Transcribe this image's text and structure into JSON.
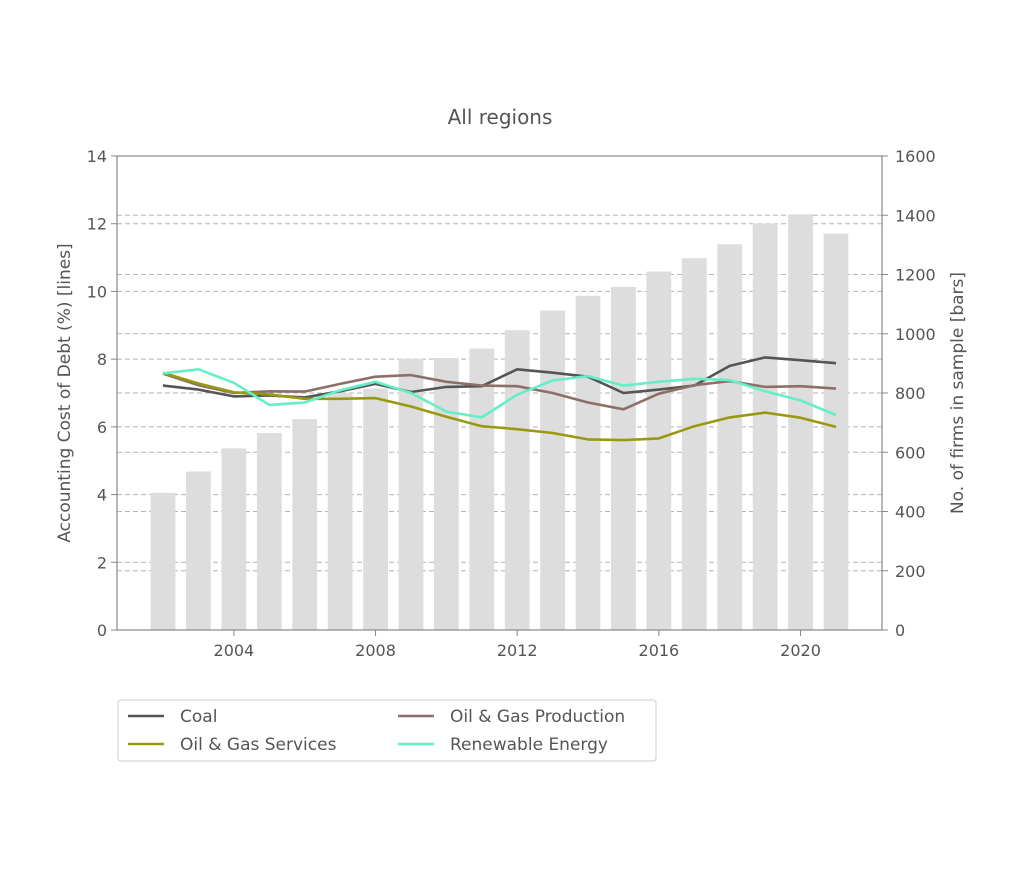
{
  "chart_data": {
    "type": "bar+line",
    "title": "All regions",
    "xlabel": "",
    "ylabel_left": "Accounting Cost of Debt (%) [lines]",
    "ylabel_right": "No. of firms in sample [bars]",
    "x": [
      2002,
      2003,
      2004,
      2005,
      2006,
      2007,
      2008,
      2009,
      2010,
      2011,
      2012,
      2013,
      2014,
      2015,
      2016,
      2017,
      2018,
      2019,
      2020,
      2021
    ],
    "xlim": [
      2000.7,
      2022.3
    ],
    "xticks": [
      "2004",
      "2008",
      "2012",
      "2016",
      "2020"
    ],
    "ylim_left": [
      0,
      14
    ],
    "yticks_left": [
      "0",
      "2",
      "4",
      "6",
      "8",
      "10",
      "12",
      "14"
    ],
    "ylim_right": [
      0,
      1600
    ],
    "yticks_right": [
      "0",
      "200",
      "400",
      "600",
      "800",
      "1000",
      "1200",
      "1400",
      "1600"
    ],
    "grid": "horizontal dashed",
    "legend_position": "below",
    "bars": {
      "color": "#dddddd",
      "values": [
        463,
        535,
        613,
        665,
        712,
        800,
        815,
        915,
        918,
        950,
        1012,
        1078,
        1128,
        1158,
        1210,
        1255,
        1302,
        1372,
        1403,
        1338
      ]
    },
    "series": [
      {
        "name": "Coal",
        "color": "#555555",
        "values": [
          7.22,
          7.1,
          6.9,
          6.93,
          6.87,
          7.05,
          7.27,
          7.03,
          7.18,
          7.2,
          7.7,
          7.6,
          7.48,
          7.0,
          7.1,
          7.22,
          7.8,
          8.05,
          7.97,
          7.88
        ]
      },
      {
        "name": "Oil & Gas Production",
        "color": "#8c7068",
        "values": [
          7.57,
          7.23,
          7.0,
          7.05,
          7.04,
          7.27,
          7.48,
          7.53,
          7.33,
          7.22,
          7.2,
          7.0,
          6.72,
          6.52,
          6.98,
          7.23,
          7.35,
          7.18,
          7.2,
          7.13
        ]
      },
      {
        "name": "Oil & Gas Services",
        "color": "#999911",
        "values": [
          7.6,
          7.28,
          7.02,
          6.96,
          6.83,
          6.83,
          6.85,
          6.6,
          6.3,
          6.02,
          5.93,
          5.82,
          5.63,
          5.61,
          5.66,
          6.02,
          6.28,
          6.42,
          6.27,
          6.0
        ]
      },
      {
        "name": "Renewable Energy",
        "color": "#66eec8",
        "values": [
          7.58,
          7.7,
          7.3,
          6.65,
          6.72,
          7.08,
          7.33,
          7.0,
          6.45,
          6.28,
          6.95,
          7.37,
          7.5,
          7.22,
          7.33,
          7.42,
          7.38,
          7.05,
          6.78,
          6.35
        ]
      }
    ]
  }
}
